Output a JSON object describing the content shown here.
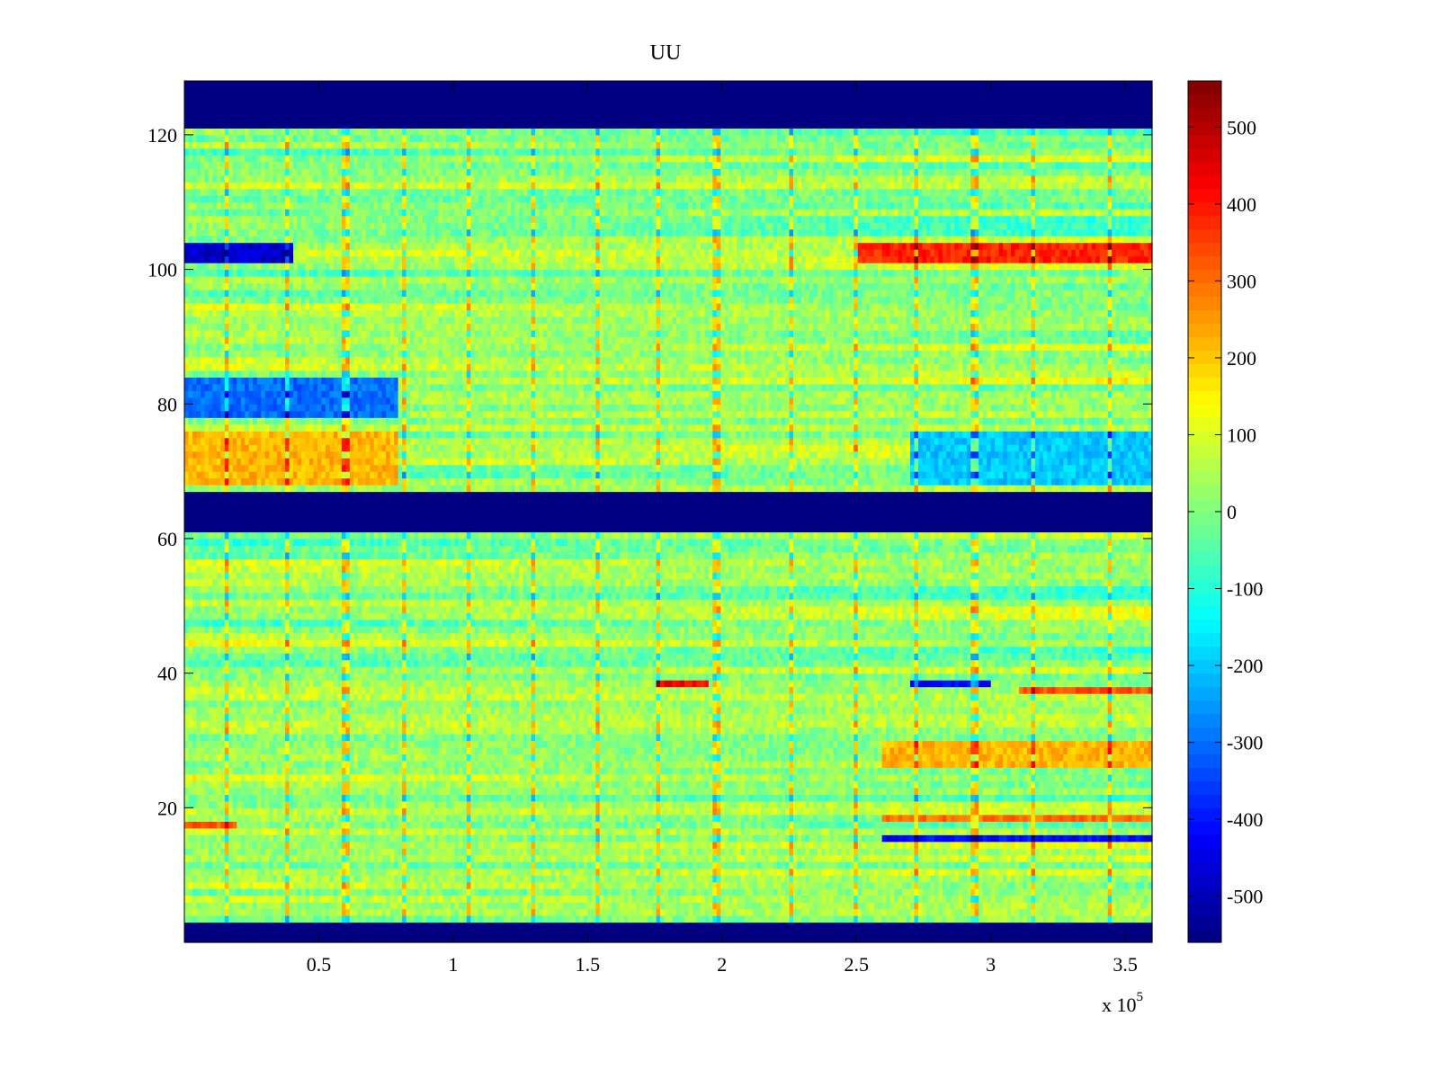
{
  "chart_data": {
    "type": "heatmap",
    "title": "UU",
    "xlabel": "",
    "ylabel": "",
    "x_exponent_label": "x 10",
    "x_exponent_power": "5",
    "xlim": [
      0,
      3.6
    ],
    "ylim": [
      0,
      128
    ],
    "x_ticks": [
      0.5,
      1,
      1.5,
      2,
      2.5,
      3,
      3.5
    ],
    "x_tick_labels": [
      "0.5",
      "1",
      "1.5",
      "2",
      "2.5",
      "3",
      "3.5"
    ],
    "y_ticks": [
      20,
      40,
      60,
      80,
      100,
      120
    ],
    "y_tick_labels": [
      "20",
      "40",
      "60",
      "80",
      "100",
      "120"
    ],
    "colorbar": {
      "colormap": "jet",
      "range": [
        -560,
        560
      ],
      "ticks": [
        -500,
        -400,
        -300,
        -200,
        -100,
        0,
        100,
        200,
        300,
        400,
        500
      ],
      "tick_labels": [
        "-500",
        "-400",
        "-300",
        "-200",
        "-100",
        "0",
        "100",
        "200",
        "300",
        "400",
        "500"
      ]
    },
    "masked_rows": [
      [
        0,
        3
      ],
      [
        61,
        67
      ],
      [
        121,
        128
      ]
    ],
    "masked_value": -560,
    "band_features": [
      {
        "row_range": [
          101,
          104
        ],
        "x_start": 0.0,
        "x_end": 0.4,
        "value": -480
      },
      {
        "row_range": [
          101,
          104
        ],
        "x_start": 2.5,
        "x_end": 3.6,
        "value": 380
      },
      {
        "row_range": [
          78,
          84
        ],
        "x_start": 0.0,
        "x_end": 0.8,
        "value": -300
      },
      {
        "row_range": [
          68,
          76
        ],
        "x_start": 0.0,
        "x_end": 0.8,
        "value": 220
      },
      {
        "row_range": [
          68,
          76
        ],
        "x_start": 2.7,
        "x_end": 3.6,
        "value": -200
      },
      {
        "row_range": [
          38,
          39
        ],
        "x_start": 1.75,
        "x_end": 1.95,
        "value": 420
      },
      {
        "row_range": [
          38,
          39
        ],
        "x_start": 2.7,
        "x_end": 3.0,
        "value": -420
      },
      {
        "row_range": [
          37,
          38
        ],
        "x_start": 3.1,
        "x_end": 3.6,
        "value": 330
      },
      {
        "row_range": [
          15,
          16
        ],
        "x_start": 2.6,
        "x_end": 3.6,
        "value": -420
      },
      {
        "row_range": [
          18,
          19
        ],
        "x_start": 2.6,
        "x_end": 3.6,
        "value": 300
      },
      {
        "row_range": [
          26,
          30
        ],
        "x_start": 2.6,
        "x_end": 3.6,
        "value": 220
      },
      {
        "row_range": [
          17,
          18
        ],
        "x_start": 0.0,
        "x_end": 0.2,
        "value": 330
      }
    ],
    "periodic_spike_x": [
      0.16,
      0.38,
      0.6,
      0.82,
      1.06,
      1.3,
      1.54,
      1.76,
      1.98,
      2.26,
      2.5,
      2.72,
      2.94,
      3.16,
      3.44
    ]
  }
}
